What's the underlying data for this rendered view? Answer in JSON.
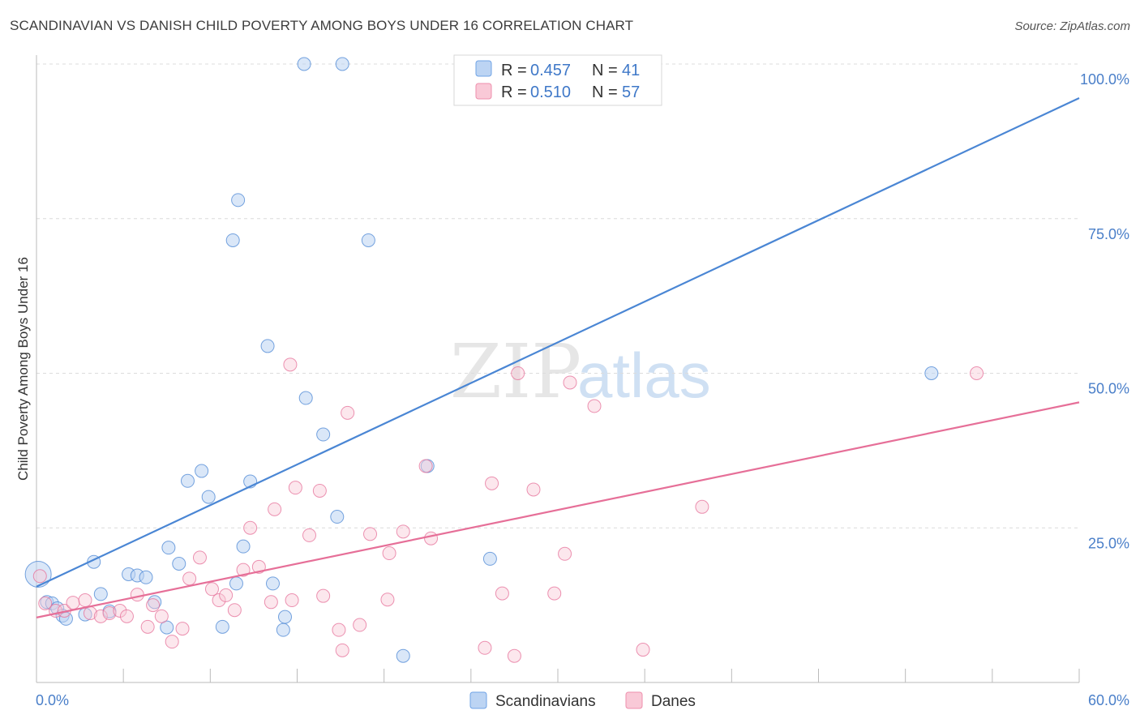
{
  "title": "SCANDINAVIAN VS DANISH CHILD POVERTY AMONG BOYS UNDER 16 CORRELATION CHART",
  "source": "Source: ZipAtlas.com",
  "watermark": {
    "zip": "ZIP",
    "atlas": "atlas"
  },
  "legend": {
    "r_label": "R =",
    "n_label": "N =",
    "rows": [
      {
        "r": "0.457",
        "n": "41",
        "color": "#6fa3e6",
        "fill": "#bcd4f3"
      },
      {
        "r": "0.510",
        "n": "57",
        "color": "#ee8fac",
        "fill": "#f9c9d7"
      }
    ]
  },
  "bottom_legend": [
    {
      "label": "Scandinavians",
      "color": "#6fa3e6",
      "fill": "#bcd4f3"
    },
    {
      "label": "Danes",
      "color": "#ee8fac",
      "fill": "#f9c9d7"
    }
  ],
  "chart_data": {
    "type": "scatter",
    "title": "SCANDINAVIAN VS DANISH CHILD POVERTY AMONG BOYS UNDER 16 CORRELATION CHART",
    "xlabel": "",
    "ylabel": "Child Poverty Among Boys Under 16",
    "xlim": [
      0,
      60
    ],
    "ylim": [
      0,
      105
    ],
    "x_tick_labels": [
      {
        "value": 0,
        "label": "0.0%"
      },
      {
        "value": 60,
        "label": "60.0%"
      }
    ],
    "y_tick_labels": [
      {
        "value": 25,
        "label": "25.0%"
      },
      {
        "value": 50,
        "label": "50.0%"
      },
      {
        "value": 75,
        "label": "75.0%"
      },
      {
        "value": 100,
        "label": "100.0%"
      }
    ],
    "grid": true,
    "legend_position": "top-center",
    "series": [
      {
        "name": "Scandinavians",
        "color": "#4a86d4",
        "fill": "#bcd4f3",
        "points": [
          [
            0.1,
            17.5
          ],
          [
            0.6,
            13
          ],
          [
            0.9,
            12.8
          ],
          [
            1.2,
            12
          ],
          [
            1.5,
            10.8
          ],
          [
            1.7,
            10.3
          ],
          [
            3.3,
            19.5
          ],
          [
            3.7,
            14.3
          ],
          [
            5.3,
            17.5
          ],
          [
            5.8,
            17.3
          ],
          [
            6.3,
            17
          ],
          [
            6.8,
            13
          ],
          [
            7.5,
            8.9
          ],
          [
            7.6,
            21.8
          ],
          [
            8.2,
            19.2
          ],
          [
            8.7,
            32.6
          ],
          [
            9.5,
            34.2
          ],
          [
            9.9,
            30
          ],
          [
            10.7,
            9
          ],
          [
            11.5,
            16
          ],
          [
            11.3,
            71.5
          ],
          [
            11.6,
            78
          ],
          [
            11.9,
            22
          ],
          [
            12.3,
            32.5
          ],
          [
            13.3,
            54.4
          ],
          [
            13.6,
            16
          ],
          [
            14.2,
            8.5
          ],
          [
            14.3,
            10.6
          ],
          [
            15.4,
            100
          ],
          [
            15.5,
            46
          ],
          [
            16.5,
            40.1
          ],
          [
            17.3,
            26.8
          ],
          [
            17.6,
            100
          ],
          [
            19.1,
            71.5
          ],
          [
            21.1,
            4.3
          ],
          [
            22.5,
            35
          ],
          [
            26.1,
            20
          ],
          [
            26.6,
            100
          ],
          [
            51.5,
            50
          ],
          [
            2.8,
            11
          ],
          [
            4.2,
            11.5
          ]
        ],
        "trend": {
          "x": [
            0,
            60
          ],
          "y": [
            15.5,
            94.5
          ]
        }
      },
      {
        "name": "Danes",
        "color": "#e66f98",
        "fill": "#f9c9d7",
        "points": [
          [
            0.5,
            12.8
          ],
          [
            1.1,
            11.6
          ],
          [
            1.6,
            11.6
          ],
          [
            2.1,
            12.9
          ],
          [
            2.8,
            13.3
          ],
          [
            3.1,
            11.2
          ],
          [
            3.7,
            10.7
          ],
          [
            4.2,
            11.2
          ],
          [
            4.8,
            11.6
          ],
          [
            5.2,
            10.7
          ],
          [
            5.8,
            14.2
          ],
          [
            6.4,
            9
          ],
          [
            6.7,
            12.5
          ],
          [
            7.2,
            10.7
          ],
          [
            7.8,
            6.6
          ],
          [
            8.4,
            8.7
          ],
          [
            8.8,
            16.8
          ],
          [
            9.4,
            20.2
          ],
          [
            10.1,
            15.1
          ],
          [
            10.5,
            13.3
          ],
          [
            10.9,
            14.1
          ],
          [
            11.4,
            11.7
          ],
          [
            11.9,
            18.2
          ],
          [
            12.3,
            25
          ],
          [
            12.8,
            18.7
          ],
          [
            13.5,
            13
          ],
          [
            13.7,
            28
          ],
          [
            14.7,
            13.3
          ],
          [
            14.9,
            31.5
          ],
          [
            14.6,
            51.4
          ],
          [
            15.7,
            23.8
          ],
          [
            16.3,
            31
          ],
          [
            16.5,
            14
          ],
          [
            17.4,
            8.5
          ],
          [
            17.6,
            5.2
          ],
          [
            17.9,
            43.6
          ],
          [
            18.6,
            9.3
          ],
          [
            19.2,
            24
          ],
          [
            20.3,
            20.9
          ],
          [
            20.2,
            13.4
          ],
          [
            21.1,
            24.4
          ],
          [
            22.4,
            35
          ],
          [
            22.7,
            23.3
          ],
          [
            25.8,
            5.6
          ],
          [
            26.2,
            32.2
          ],
          [
            26.8,
            14.4
          ],
          [
            27.5,
            4.3
          ],
          [
            27.7,
            50
          ],
          [
            28.6,
            31.2
          ],
          [
            29.8,
            14.4
          ],
          [
            30.4,
            20.8
          ],
          [
            30.7,
            48.5
          ],
          [
            32.1,
            44.7
          ],
          [
            34.9,
            5.3
          ],
          [
            38.3,
            28.4
          ],
          [
            54.1,
            50
          ],
          [
            0.2,
            17.2
          ]
        ],
        "trend": {
          "x": [
            0,
            60
          ],
          "y": [
            10.5,
            45.3
          ]
        }
      }
    ]
  }
}
